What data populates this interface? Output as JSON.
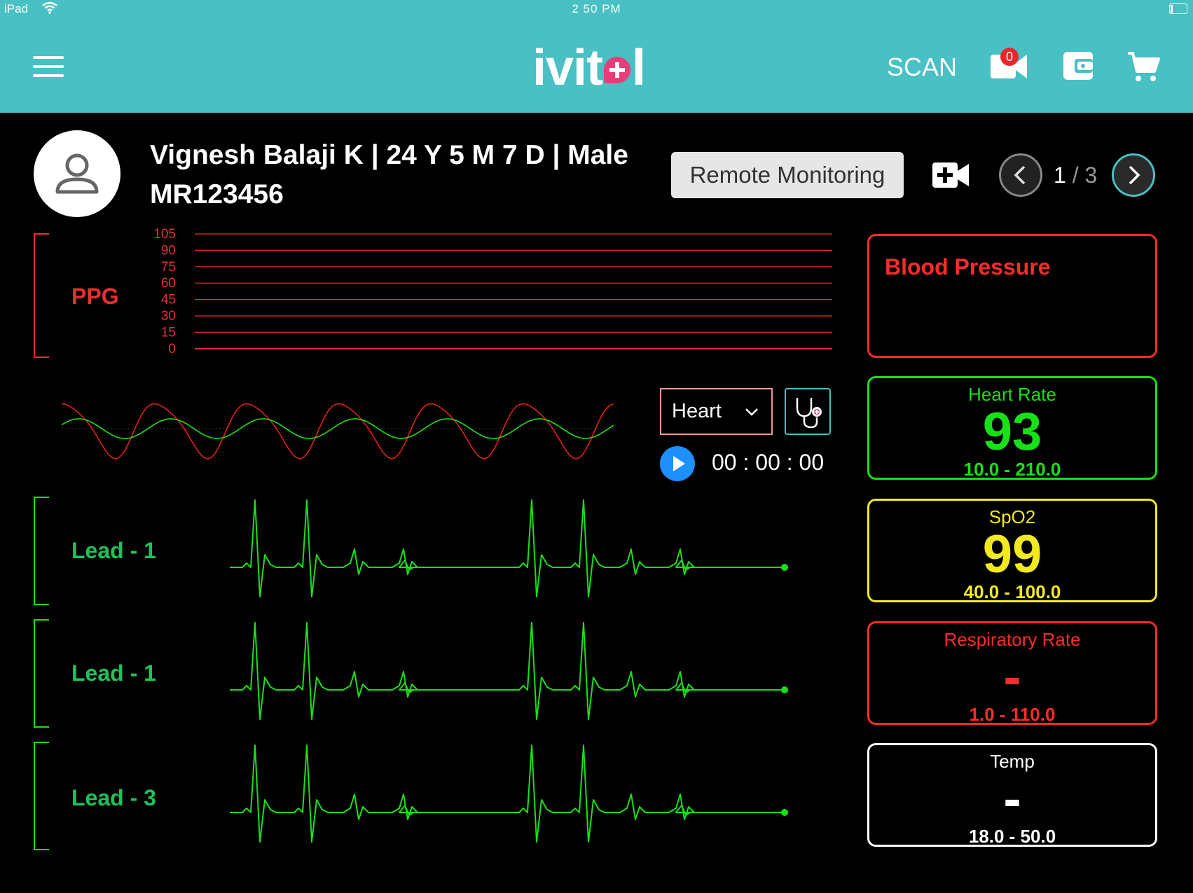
{
  "status_bar": {
    "carrier": "iPad",
    "time": "2 50 PM"
  },
  "header": {
    "logo_prefix": "ivit",
    "logo_suffix": "l",
    "scan_label": "SCAN",
    "video_badge": "0",
    "icons": [
      "menu-icon",
      "video-call-icon",
      "wallet-icon",
      "cart-icon"
    ]
  },
  "patient": {
    "line1": "Vignesh Balaji K  |  24 Y 5 M 7 D  |  Male",
    "mrn": "MR123456"
  },
  "actions": {
    "remote_label": "Remote Monitoring",
    "page_current": "1",
    "page_sep": "/",
    "page_total": "3"
  },
  "ppg": {
    "label": "PPG",
    "ticks": [
      "105",
      "90",
      "75",
      "60",
      "45",
      "30",
      "15",
      "0"
    ]
  },
  "controls": {
    "selected": "Heart",
    "timer": "00 : 00 : 00"
  },
  "leads": [
    {
      "label": "Lead - 1"
    },
    {
      "label": "Lead - 1"
    },
    {
      "label": "Lead - 3"
    }
  ],
  "vitals": {
    "bp": {
      "name": "Blood Pressure",
      "color": "#ff2b2b"
    },
    "hr": {
      "name": "Heart Rate",
      "value": "93",
      "range": "10.0 - 210.0",
      "color": "#18e018"
    },
    "spo2": {
      "name": "SpO2",
      "value": "99",
      "range": "40.0 - 100.0",
      "color": "#f2ea1c"
    },
    "rr": {
      "name": "Respiratory Rate",
      "value": "-",
      "range": "1.0 - 110.0",
      "color": "#ff2b2b"
    },
    "temp": {
      "name": "Temp",
      "value": "-",
      "range": "18.0 - 50.0",
      "color": "#ffffff"
    }
  },
  "colors": {
    "header": "#48c0c4",
    "ppg": "#e83030",
    "lead": "#18e018",
    "lead_label": "#1fc25a"
  }
}
